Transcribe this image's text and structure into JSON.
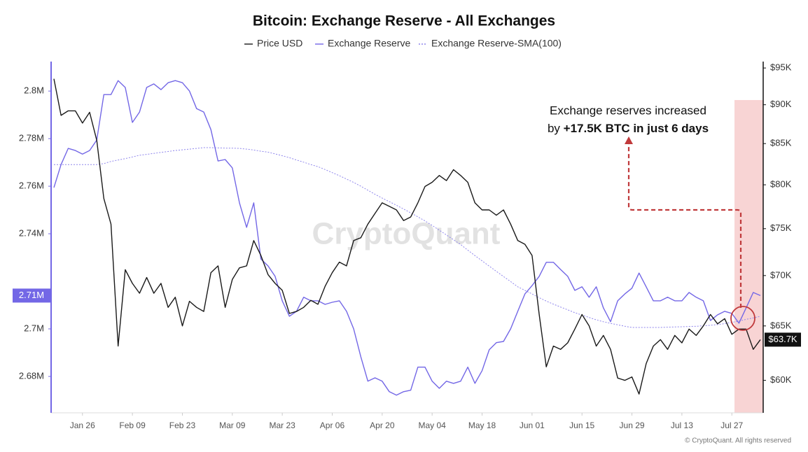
{
  "chart_data": {
    "type": "line",
    "title": "Bitcoin: Exchange Reserve - All Exchanges",
    "watermark": "CryptoQuant",
    "footer": "© CryptoQuant. All rights reserved",
    "annotation": {
      "line1": "Exchange reserves increased",
      "line2_prefix": "by",
      "line2_bold": "+17.5K BTC in just 6 days"
    },
    "categories": [
      null,
      null,
      null,
      null,
      "Jan 26",
      null,
      null,
      null,
      null,
      null,
      null,
      "Feb 09",
      null,
      null,
      null,
      null,
      null,
      null,
      "Feb 23",
      null,
      null,
      null,
      null,
      null,
      null,
      "Mar 09",
      null,
      null,
      null,
      null,
      null,
      null,
      "Mar 23",
      null,
      null,
      null,
      null,
      null,
      null,
      "Apr 06",
      null,
      null,
      null,
      null,
      null,
      null,
      "Apr 20",
      null,
      null,
      null,
      null,
      null,
      null,
      "May 04",
      null,
      null,
      null,
      null,
      null,
      null,
      "May 18",
      null,
      null,
      null,
      null,
      null,
      null,
      "Jun 01",
      null,
      null,
      null,
      null,
      null,
      null,
      "Jun 15",
      null,
      null,
      null,
      null,
      null,
      null,
      "Jun 29",
      null,
      null,
      null,
      null,
      null,
      null,
      "Jul 13",
      null,
      null,
      null,
      null,
      null,
      null,
      "Jul 27",
      null,
      null,
      null,
      null
    ],
    "series": [
      {
        "name": "Price USD",
        "color": "#1a1a1a",
        "axis": "y2",
        "last_label": "$63.7K",
        "values": [
          93500,
          88600,
          89200,
          89200,
          87600,
          89000,
          85400,
          78400,
          75500,
          63100,
          70600,
          69200,
          68200,
          69800,
          68200,
          69200,
          66800,
          67800,
          65000,
          67400,
          66800,
          66400,
          70300,
          71000,
          66800,
          69600,
          70800,
          71000,
          73700,
          72100,
          70100,
          69200,
          68500,
          66200,
          66400,
          66800,
          67500,
          67100,
          68900,
          70300,
          71400,
          71000,
          73700,
          74000,
          75500,
          76700,
          77900,
          77500,
          77100,
          75900,
          76300,
          77900,
          79800,
          80300,
          81100,
          80500,
          81800,
          81100,
          80300,
          77900,
          77100,
          77100,
          76500,
          77100,
          75500,
          73700,
          73300,
          72100,
          66100,
          61200,
          63100,
          62800,
          63400,
          64700,
          66100,
          65000,
          63100,
          64100,
          62800,
          60200,
          60000,
          60300,
          58800,
          61500,
          63100,
          63700,
          62800,
          64100,
          63400,
          64700,
          64100,
          65000,
          66100,
          65200,
          65700,
          64200,
          64700,
          64700,
          62800,
          63700
        ]
      },
      {
        "name": "Exchange Reserve",
        "color": "#7367e6",
        "last_label": "2.71M",
        "values": [
          2759400,
          2769100,
          2775900,
          2775000,
          2773500,
          2775000,
          2779400,
          2798500,
          2798500,
          2804400,
          2801500,
          2786800,
          2791200,
          2801500,
          2803000,
          2800600,
          2803500,
          2804400,
          2803500,
          2800000,
          2792600,
          2791200,
          2783800,
          2770600,
          2771200,
          2767700,
          2753000,
          2742700,
          2753000,
          2729400,
          2726500,
          2722100,
          2711800,
          2705300,
          2707400,
          2713300,
          2711800,
          2711800,
          2710300,
          2711200,
          2711800,
          2707400,
          2700000,
          2688300,
          2678000,
          2679400,
          2678000,
          2673600,
          2672100,
          2673600,
          2674200,
          2683900,
          2683900,
          2678000,
          2675000,
          2678000,
          2677100,
          2678000,
          2683900,
          2677100,
          2682400,
          2691200,
          2694200,
          2694700,
          2700000,
          2707400,
          2714700,
          2718200,
          2722100,
          2728000,
          2728000,
          2725000,
          2722100,
          2716200,
          2717700,
          2713300,
          2717700,
          2708800,
          2703000,
          2711800,
          2714700,
          2717100,
          2723500,
          2717700,
          2711800,
          2711800,
          2713300,
          2711800,
          2711800,
          2715300,
          2713300,
          2711800,
          2703500,
          2705900,
          2707400,
          2706500,
          2702400,
          2708800,
          2715300,
          2714000
        ]
      },
      {
        "name": "Exchange Reserve-SMA(100)",
        "color": "#8f86ec",
        "dash": "2,2",
        "values": [
          2769100,
          2769100,
          2769100,
          2769100,
          2769100,
          2769100,
          2769100,
          2769500,
          2770400,
          2771000,
          2771600,
          2772300,
          2773000,
          2773400,
          2773800,
          2774200,
          2774600,
          2775000,
          2775300,
          2775600,
          2775900,
          2776200,
          2776200,
          2776100,
          2776000,
          2776000,
          2775900,
          2775600,
          2775200,
          2774700,
          2774300,
          2773600,
          2772800,
          2772000,
          2771000,
          2770100,
          2769100,
          2768200,
          2767000,
          2765700,
          2764400,
          2763000,
          2761600,
          2760000,
          2758300,
          2756600,
          2755000,
          2753500,
          2752000,
          2750400,
          2748800,
          2747100,
          2745400,
          2743500,
          2741500,
          2739500,
          2737500,
          2735500,
          2733100,
          2730800,
          2728600,
          2726400,
          2724200,
          2722000,
          2719900,
          2717700,
          2716200,
          2714700,
          2713100,
          2711700,
          2710400,
          2709200,
          2708000,
          2706800,
          2705800,
          2704800,
          2703800,
          2703000,
          2702300,
          2701700,
          2701100,
          2700600,
          2700600,
          2700600,
          2700600,
          2700600,
          2700700,
          2700800,
          2700900,
          2701000,
          2701100,
          2701300,
          2701500,
          2701800,
          2702200,
          2702700,
          2703300,
          2704000,
          2704600,
          2705300
        ]
      }
    ],
    "ylim": [
      2664700,
      2812400
    ],
    "yticks": [
      {
        "value": 2680000,
        "label": "2.68M"
      },
      {
        "value": 2700000,
        "label": "2.7M"
      },
      {
        "value": 2740000,
        "label": "2.74M"
      },
      {
        "value": 2760000,
        "label": "2.76M"
      },
      {
        "value": 2780000,
        "label": "2.78M"
      },
      {
        "value": 2800000,
        "label": "2.8M"
      }
    ],
    "y2lim": [
      57200,
      95900
    ],
    "y2log": true,
    "y2ticks": [
      {
        "value": 60000,
        "label": "$60K"
      },
      {
        "value": 65000,
        "label": "$65K"
      },
      {
        "value": 70000,
        "label": "$70K"
      },
      {
        "value": 75000,
        "label": "$75K"
      },
      {
        "value": 80000,
        "label": "$80K"
      },
      {
        "value": 85000,
        "label": "$85K"
      },
      {
        "value": 90000,
        "label": "$90K"
      },
      {
        "value": 95000,
        "label": "$95K"
      }
    ],
    "grid": false,
    "legend": "top"
  }
}
